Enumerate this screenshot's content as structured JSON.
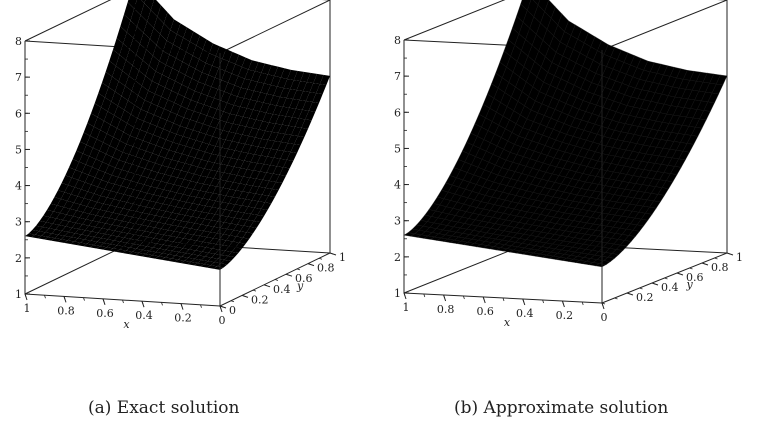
{
  "panels": [
    {
      "caption": "(a) Exact solution"
    },
    {
      "caption": "(b) Approximate solution"
    }
  ],
  "chart_data": [
    {
      "type": "surface3d",
      "title": "",
      "caption": "(a) Exact solution",
      "xlabel": "x",
      "ylabel": "y",
      "zlabel": "",
      "xlim": [
        0,
        1
      ],
      "ylim": [
        0,
        1
      ],
      "zlim": [
        1,
        8
      ],
      "x_ticks": [
        "0",
        "0.2",
        "0.4",
        "0.6",
        "0.8",
        "1"
      ],
      "y_ticks": [
        "0",
        "0.2",
        "0.4",
        "0.6",
        "0.8",
        "1"
      ],
      "z_ticks": [
        "1",
        "2",
        "3",
        "4",
        "5",
        "6",
        "7",
        "8"
      ],
      "grid": false,
      "mesh_lines": false,
      "colormap": [
        "#c23ad8",
        "#c8d820",
        "#e0401a"
      ],
      "surface_corner_values": [
        {
          "x": 1,
          "y": 1,
          "z": 8.3
        },
        {
          "x": 0,
          "y": 1,
          "z": 5.9
        },
        {
          "x": 1,
          "y": 0,
          "z": 2.6
        },
        {
          "x": 0,
          "y": 0,
          "z": 2.0
        }
      ],
      "surface_profile_y1": [
        {
          "x": 1,
          "z": 8.3
        },
        {
          "x": 0.8,
          "z": 7.2
        },
        {
          "x": 0.6,
          "z": 6.6
        },
        {
          "x": 0.4,
          "z": 6.2
        },
        {
          "x": 0.2,
          "z": 6.0
        },
        {
          "x": 0,
          "z": 5.9
        }
      ]
    },
    {
      "type": "surface3d",
      "title": "",
      "caption": "(b) Approximate solution",
      "xlabel": "x",
      "ylabel": "y",
      "zlabel": "",
      "xlim": [
        0,
        1
      ],
      "ylim": [
        0,
        1
      ],
      "zlim": [
        1,
        8
      ],
      "x_ticks": [
        "0",
        "0.2",
        "0.4",
        "0.6",
        "0.8",
        "1"
      ],
      "y_ticks": [
        "0.2",
        "0.4",
        "0.6",
        "0.8",
        "1"
      ],
      "z_ticks": [
        "1",
        "2",
        "3",
        "4",
        "5",
        "6",
        "7",
        "8"
      ],
      "grid": false,
      "mesh_lines": true,
      "colormap": [
        "#a22cb8",
        "#b8c81c",
        "#cc3a16"
      ],
      "surface_corner_values": [
        {
          "x": 1,
          "y": 1,
          "z": 8.3
        },
        {
          "x": 0,
          "y": 1,
          "z": 5.9
        },
        {
          "x": 1,
          "y": 0,
          "z": 2.6
        },
        {
          "x": 0,
          "y": 0,
          "z": 2.0
        }
      ],
      "surface_profile_y1": [
        {
          "x": 1,
          "z": 8.3
        },
        {
          "x": 0.8,
          "z": 7.2
        },
        {
          "x": 0.6,
          "z": 6.6
        },
        {
          "x": 0.4,
          "z": 6.2
        },
        {
          "x": 0.2,
          "z": 6.0
        },
        {
          "x": 0,
          "z": 5.9
        }
      ]
    }
  ]
}
